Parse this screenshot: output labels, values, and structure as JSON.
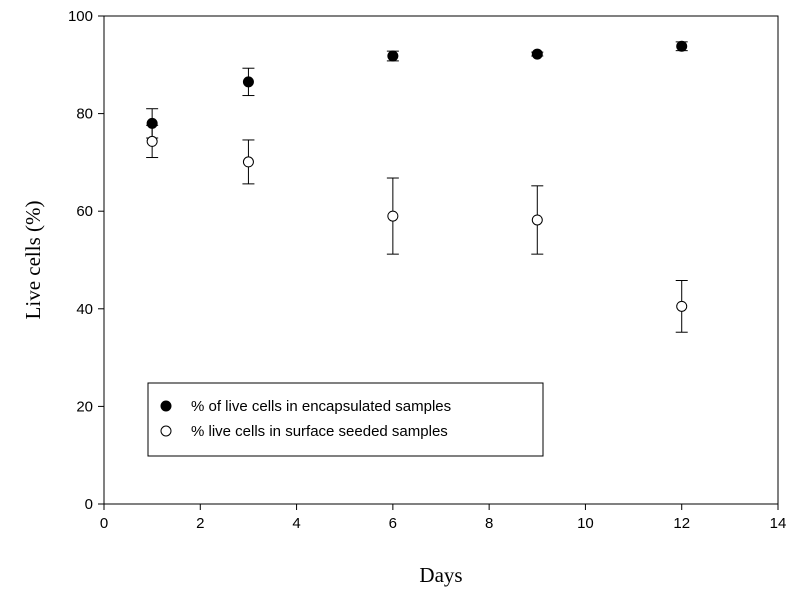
{
  "chart_data": {
    "type": "scatter",
    "title": "",
    "xlabel": "Days",
    "ylabel": "Live cells (%)",
    "xlim": [
      0,
      14
    ],
    "ylim": [
      0,
      100
    ],
    "xticks": [
      0,
      2,
      4,
      6,
      8,
      10,
      12,
      14
    ],
    "yticks": [
      0,
      20,
      40,
      60,
      80,
      100
    ],
    "grid": false,
    "legend_position": "bottom-left",
    "series": [
      {
        "name": "% of live cells in encapsulated samples",
        "marker": "filled-circle",
        "color": "#000000",
        "points": [
          {
            "x": 1,
            "y": 78,
            "err": 3
          },
          {
            "x": 3,
            "y": 86.5,
            "err": 2.8
          },
          {
            "x": 6,
            "y": 91.8,
            "err": 1
          },
          {
            "x": 9,
            "y": 92.2,
            "err": 0.4
          },
          {
            "x": 12,
            "y": 93.8,
            "err": 0.9
          }
        ]
      },
      {
        "name": "% live cells in surface seeded samples",
        "marker": "open-circle",
        "color": "#000000",
        "points": [
          {
            "x": 1,
            "y": 74.3,
            "err": 3.3
          },
          {
            "x": 3,
            "y": 70.1,
            "err": 4.5
          },
          {
            "x": 6,
            "y": 59,
            "err": 7.8
          },
          {
            "x": 9,
            "y": 58.2,
            "err": 7
          },
          {
            "x": 12,
            "y": 40.5,
            "err": 5.3
          }
        ]
      }
    ]
  }
}
